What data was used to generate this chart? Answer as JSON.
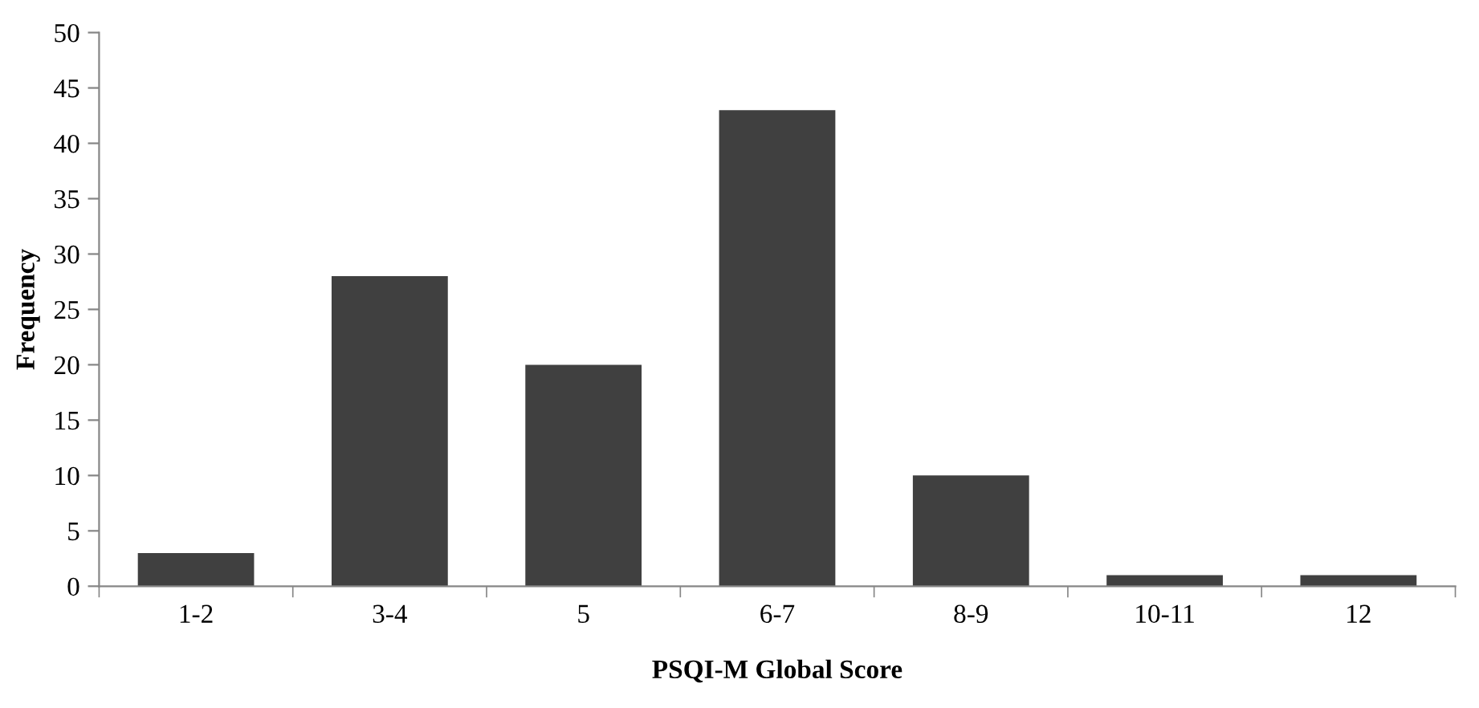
{
  "chart_data": {
    "type": "bar",
    "xlabel": "PSQI-M Global Score",
    "ylabel": "Frequency",
    "categories": [
      "1-2",
      "3-4",
      "5",
      "6-7",
      "8-9",
      "10-11",
      "12"
    ],
    "values": [
      3,
      28,
      20,
      43,
      10,
      1,
      1
    ],
    "color": "#404040",
    "ylim": [
      0,
      50
    ],
    "yticks": [
      0,
      5,
      10,
      15,
      20,
      25,
      30,
      35,
      40,
      45,
      50
    ],
    "grid": false,
    "legend": false
  }
}
